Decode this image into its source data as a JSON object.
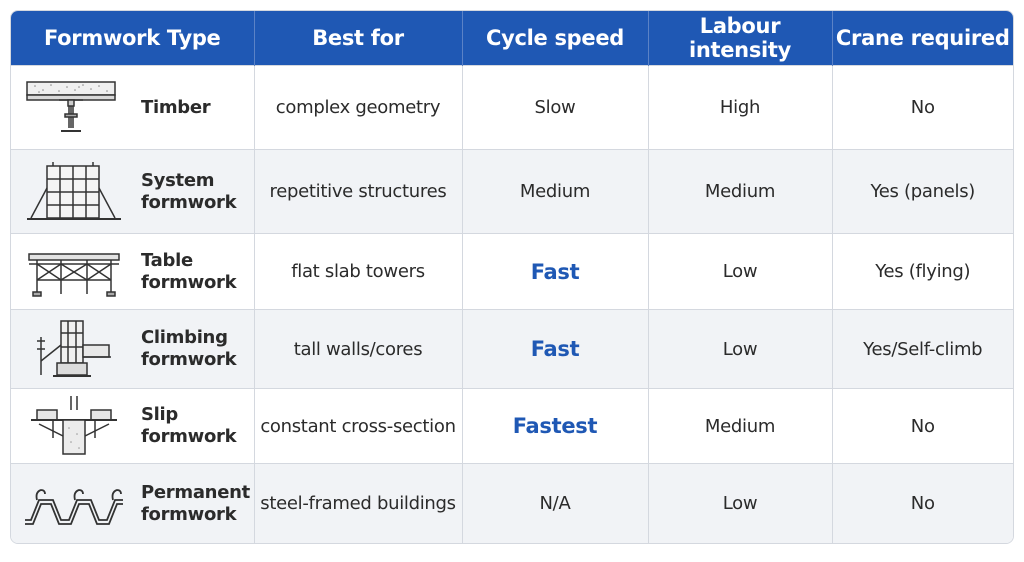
{
  "table": {
    "headers": [
      "Formwork Type",
      "Best for",
      "Cycle speed",
      "Labour intensity",
      "Crane required"
    ],
    "rows": [
      {
        "type": "Timber",
        "icon": "timber-formwork-icon",
        "best_for": "complex geometry",
        "cycle_speed": "Slow",
        "labour": "High",
        "crane": "No"
      },
      {
        "type": "System\nformwork",
        "icon": "system-formwork-icon",
        "best_for": "repetitive structures",
        "cycle_speed": "Medium",
        "labour": "Medium",
        "crane": "Yes (panels)"
      },
      {
        "type": "Table\nformwork",
        "icon": "table-formwork-icon",
        "best_for": "flat slab towers",
        "cycle_speed": "Fast",
        "labour": "Low",
        "crane": "Yes (flying)"
      },
      {
        "type": "Climbing\nformwork",
        "icon": "climbing-formwork-icon",
        "best_for": "tall walls/cores",
        "cycle_speed": "Fast",
        "labour": "Low",
        "crane": "Yes/Self-climb"
      },
      {
        "type": "Slip formwork",
        "icon": "slip-formwork-icon",
        "best_for": "constant cross-section",
        "cycle_speed": "Fastest",
        "labour": "Medium",
        "crane": "No"
      },
      {
        "type": "Permanent\nformwork",
        "icon": "permanent-formwork-icon",
        "best_for": "steel-framed buildings",
        "cycle_speed": "N/A",
        "labour": "Low",
        "crane": "No"
      }
    ]
  },
  "colors": {
    "header_bg": "#1f58b4",
    "emphasis_text": "#1f58b4",
    "alt_row_bg": "#f1f3f6"
  }
}
